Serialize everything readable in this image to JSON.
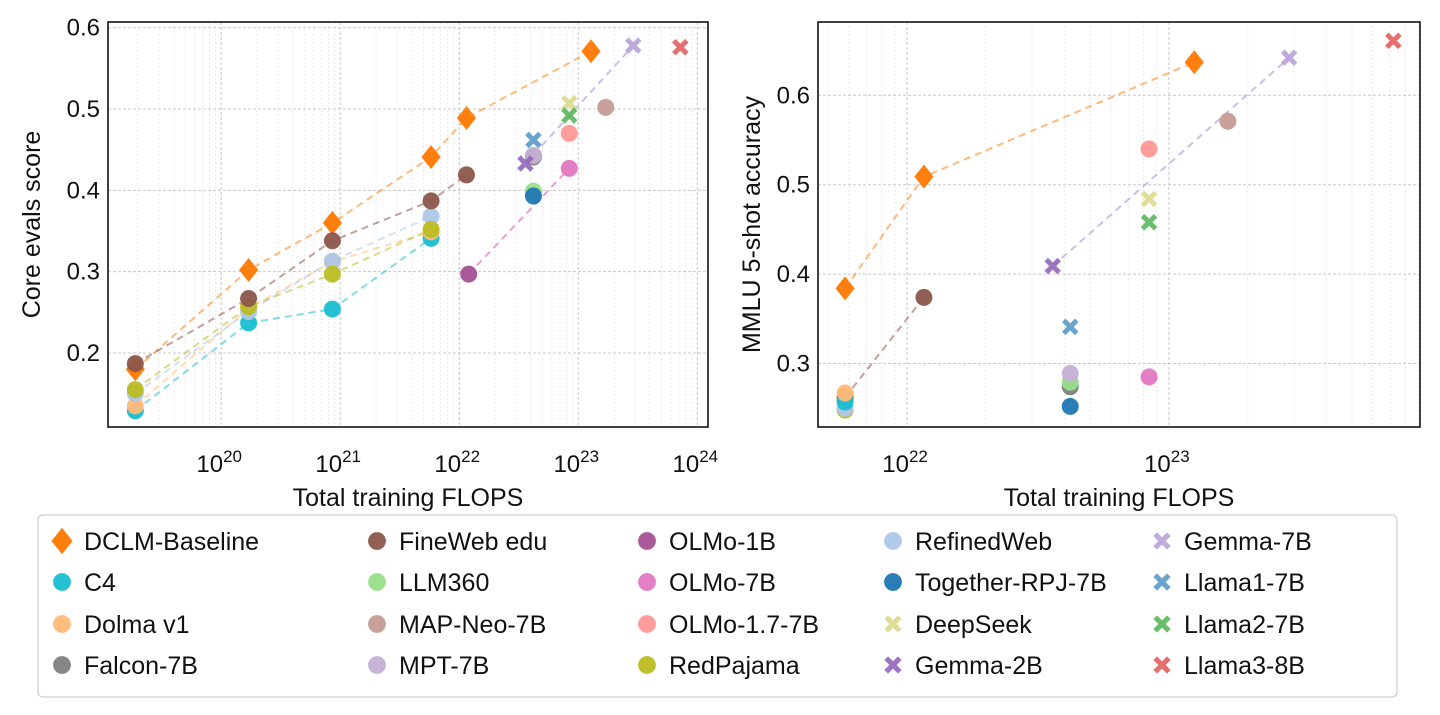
{
  "legend": [
    {
      "name": "DCLM-Baseline",
      "color": "#ff7f0e",
      "marker": "diamond"
    },
    {
      "name": "C4",
      "color": "#17becf",
      "marker": "circle"
    },
    {
      "name": "Dolma v1",
      "color": "#ffbb78",
      "marker": "circle"
    },
    {
      "name": "Falcon-7B",
      "color": "#7f7f7f",
      "marker": "circle"
    },
    {
      "name": "FineWeb edu",
      "color": "#8c564b",
      "marker": "circle"
    },
    {
      "name": "LLM360",
      "color": "#98df8a",
      "marker": "circle"
    },
    {
      "name": "MAP-Neo-7B",
      "color": "#c49c94",
      "marker": "circle"
    },
    {
      "name": "MPT-7B",
      "color": "#c5b0d5",
      "marker": "circle"
    },
    {
      "name": "OLMo-1B",
      "color": "#a55194",
      "marker": "circle"
    },
    {
      "name": "OLMo-7B",
      "color": "#e377c2",
      "marker": "circle"
    },
    {
      "name": "OLMo-1.7-7B",
      "color": "#ff9896",
      "marker": "circle"
    },
    {
      "name": "RedPajama",
      "color": "#bcbd22",
      "marker": "circle"
    },
    {
      "name": "RefinedWeb",
      "color": "#aec7e8",
      "marker": "circle"
    },
    {
      "name": "Together-RPJ-7B",
      "color": "#1f77b4",
      "marker": "circle"
    },
    {
      "name": "DeepSeek",
      "color": "#dbdb8d",
      "marker": "x"
    },
    {
      "name": "Gemma-2B",
      "color": "#9467bd",
      "marker": "x"
    },
    {
      "name": "Gemma-7B",
      "color": "#b9a3d8",
      "marker": "x"
    },
    {
      "name": "Llama1-7B",
      "color": "#5a9bc8",
      "marker": "x"
    },
    {
      "name": "Llama2-7B",
      "color": "#5cb85c",
      "marker": "x"
    },
    {
      "name": "Llama3-8B",
      "color": "#e06060",
      "marker": "x"
    }
  ],
  "chart_data": [
    {
      "type": "scatter",
      "xlabel": "Total training FLOPS",
      "ylabel": "Core evals score",
      "xscale": "log",
      "xlim": [
        1.12e+19,
        1.23e+24
      ],
      "ylim": [
        0.109,
        0.607
      ],
      "xticks": [
        {
          "exp": "20",
          "value": 1e+20
        },
        {
          "exp": "21",
          "value": 1e+21
        },
        {
          "exp": "22",
          "value": 1e+22
        },
        {
          "exp": "23",
          "value": 1e+23
        },
        {
          "exp": "24",
          "value": 1e+24
        }
      ],
      "xtick_base": "10",
      "yticks": [
        "0.2",
        "0.3",
        "0.4",
        "0.5",
        "0.6"
      ],
      "grid": true,
      "series": [
        {
          "name": "DCLM-Baseline",
          "line": true,
          "points": [
            [
              1.9e+19,
              0.18
            ],
            [
              1.7e+20,
              0.302
            ],
            [
              8.6e+20,
              0.36
            ],
            [
              5.8e+21,
              0.441
            ],
            [
              1.15e+22,
              0.489
            ],
            [
              1.28e+23,
              0.571
            ]
          ]
        },
        {
          "name": "C4",
          "line": true,
          "points": [
            [
              1.9e+19,
              0.129
            ],
            [
              1.7e+20,
              0.237
            ],
            [
              8.6e+20,
              0.254
            ],
            [
              5.8e+21,
              0.341
            ]
          ]
        },
        {
          "name": "Dolma v1",
          "line": true,
          "points": [
            [
              1.9e+19,
              0.135
            ],
            [
              1.7e+20,
              0.255
            ],
            [
              8.6e+20,
              0.312
            ],
            [
              5.8e+21,
              0.349
            ]
          ]
        },
        {
          "name": "RefinedWeb",
          "line": true,
          "points": [
            [
              1.9e+19,
              0.15
            ],
            [
              1.7e+20,
              0.251
            ],
            [
              8.6e+20,
              0.313
            ],
            [
              5.8e+21,
              0.368
            ]
          ]
        },
        {
          "name": "RedPajama",
          "line": true,
          "points": [
            [
              1.9e+19,
              0.155
            ],
            [
              1.7e+20,
              0.257
            ],
            [
              8.6e+20,
              0.297
            ],
            [
              5.8e+21,
              0.352
            ]
          ]
        },
        {
          "name": "FineWeb edu",
          "line": true,
          "points": [
            [
              1.9e+19,
              0.187
            ],
            [
              1.7e+20,
              0.267
            ],
            [
              8.6e+20,
              0.338
            ],
            [
              5.8e+21,
              0.387
            ],
            [
              1.15e+22,
              0.419
            ]
          ]
        },
        {
          "name": "Falcon-7B",
          "points": [
            [
              4.2e+22,
              0.441
            ]
          ]
        },
        {
          "name": "LLM360",
          "points": [
            [
              4.2e+22,
              0.399
            ]
          ]
        },
        {
          "name": "Together-RPJ-7B",
          "points": [
            [
              4.2e+22,
              0.393
            ]
          ]
        },
        {
          "name": "MPT-7B",
          "points": [
            [
              4.2e+22,
              0.443
            ]
          ]
        },
        {
          "name": "MAP-Neo-7B",
          "points": [
            [
              1.7e+23,
              0.502
            ]
          ]
        },
        {
          "name": "OLMo-1B",
          "points": [
            [
              1.2e+22,
              0.297
            ]
          ]
        },
        {
          "name": "OLMo-7B",
          "points": [
            [
              8.4e+22,
              0.427
            ]
          ]
        },
        {
          "name": "OLMo-1.7-7B",
          "points": [
            [
              8.4e+22,
              0.47
            ]
          ]
        },
        {
          "name": "DeepSeek",
          "points": [
            [
              8.4e+22,
              0.507
            ]
          ]
        },
        {
          "name": "Gemma-2B",
          "points": [
            [
              3.6e+22,
              0.433
            ]
          ]
        },
        {
          "name": "Gemma-7B",
          "points": [
            [
              2.9e+23,
              0.578
            ]
          ]
        },
        {
          "name": "Llama1-7B",
          "points": [
            [
              4.2e+22,
              0.462
            ]
          ]
        },
        {
          "name": "Llama2-7B",
          "points": [
            [
              8.4e+22,
              0.492
            ]
          ]
        },
        {
          "name": "Llama3-8B",
          "points": [
            [
              7.2e+23,
              0.576
            ]
          ]
        }
      ],
      "connections": [
        [
          "OLMo-1B",
          "OLMo-7B"
        ],
        [
          "Gemma-2B",
          "Gemma-7B"
        ]
      ]
    },
    {
      "type": "scatter",
      "xlabel": "Total training FLOPS",
      "ylabel": "MMLU 5-shot accuracy",
      "xscale": "log",
      "xlim": [
        4.57e+21,
        9.1e+23
      ],
      "ylim": [
        0.229,
        0.682
      ],
      "xticks": [
        {
          "exp": "22",
          "value": 1e+22
        },
        {
          "exp": "23",
          "value": 1e+23
        }
      ],
      "xtick_base": "10",
      "yticks": [
        "0.3",
        "0.4",
        "0.5",
        "0.6"
      ],
      "grid": true,
      "series": [
        {
          "name": "DCLM-Baseline",
          "line": true,
          "points": [
            [
              5.8e+21,
              0.384
            ],
            [
              1.16e+22,
              0.509
            ],
            [
              1.25e+23,
              0.637
            ]
          ]
        },
        {
          "name": "FineWeb edu",
          "line": true,
          "points": [
            [
              5.8e+21,
              0.262
            ],
            [
              1.16e+22,
              0.374
            ]
          ]
        },
        {
          "name": "RedPajama",
          "points": [
            [
              5.8e+21,
              0.248
            ]
          ]
        },
        {
          "name": "RefinedWeb",
          "points": [
            [
              5.8e+21,
              0.25
            ]
          ]
        },
        {
          "name": "C4",
          "points": [
            [
              5.8e+21,
              0.257
            ]
          ]
        },
        {
          "name": "Dolma v1",
          "points": [
            [
              5.8e+21,
              0.267
            ]
          ]
        },
        {
          "name": "Together-RPJ-7B",
          "points": [
            [
              4.2e+22,
              0.252
            ]
          ]
        },
        {
          "name": "Falcon-7B",
          "points": [
            [
              4.2e+22,
              0.274
            ]
          ]
        },
        {
          "name": "LLM360",
          "points": [
            [
              4.2e+22,
              0.279
            ]
          ]
        },
        {
          "name": "MPT-7B",
          "points": [
            [
              4.2e+22,
              0.289
            ]
          ]
        },
        {
          "name": "Llama1-7B",
          "points": [
            [
              4.2e+22,
              0.341
            ]
          ]
        },
        {
          "name": "Gemma-2B",
          "points": [
            [
              3.6e+22,
              0.409
            ]
          ]
        },
        {
          "name": "Gemma-7B",
          "points": [
            [
              2.88e+23,
              0.642
            ]
          ]
        },
        {
          "name": "OLMo-7B",
          "points": [
            [
              8.4e+22,
              0.285
            ]
          ]
        },
        {
          "name": "OLMo-1.7-7B",
          "points": [
            [
              8.4e+22,
              0.54
            ]
          ]
        },
        {
          "name": "DeepSeek",
          "points": [
            [
              8.4e+22,
              0.484
            ]
          ]
        },
        {
          "name": "Llama2-7B",
          "points": [
            [
              8.4e+22,
              0.458
            ]
          ]
        },
        {
          "name": "MAP-Neo-7B",
          "points": [
            [
              1.68e+23,
              0.571
            ]
          ]
        },
        {
          "name": "Llama3-8B",
          "points": [
            [
              7.2e+23,
              0.661
            ]
          ]
        }
      ],
      "connections": [
        [
          "Gemma-2B",
          "Gemma-7B"
        ]
      ]
    }
  ]
}
